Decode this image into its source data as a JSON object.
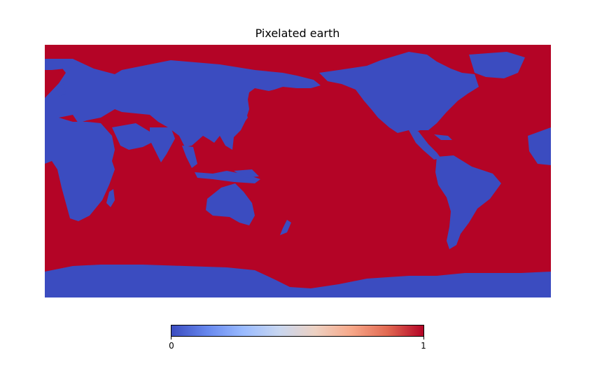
{
  "title": "Pixelated earth",
  "map": {
    "ocean_value": 1,
    "land_value": 0,
    "ocean_color": "#b40426",
    "land_color": "#3b4cc0"
  },
  "colorbar": {
    "colormap": "coolwarm",
    "min_label": "0",
    "max_label": "1",
    "stops": [
      "#3b4cc0",
      "#6788ee",
      "#9abbff",
      "#c9d7f0",
      "#edd1c2",
      "#f7a889",
      "#e26952",
      "#b40426"
    ]
  }
}
